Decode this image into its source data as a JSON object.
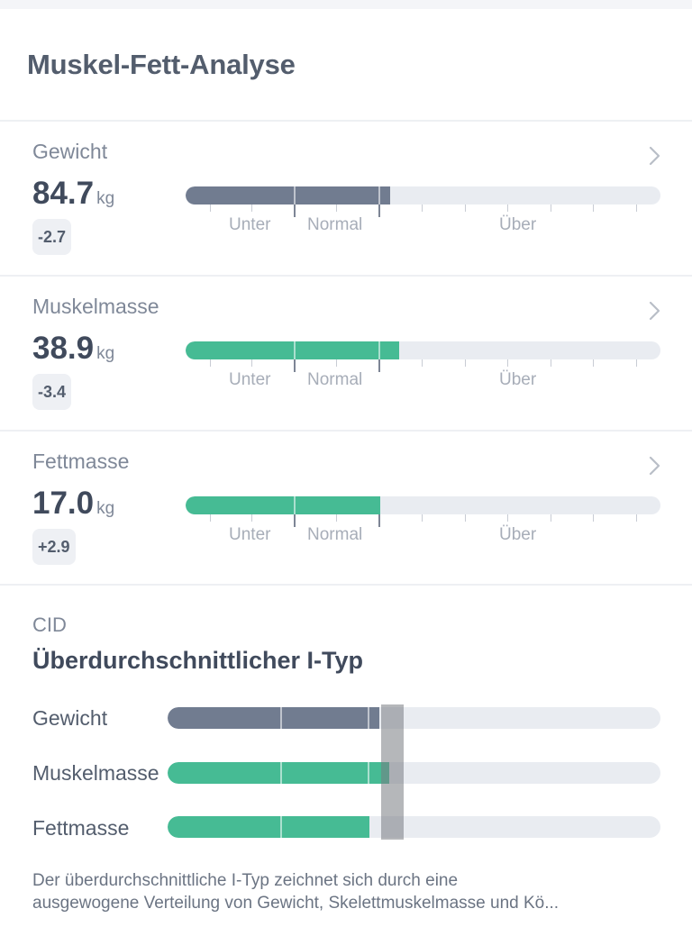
{
  "header": {
    "title": "Muskel-Fett-Analyse"
  },
  "scale_labels": {
    "under": "Unter",
    "normal": "Normal",
    "over": "Über"
  },
  "colors": {
    "weight": "#717c90",
    "muscle": "#46bb94",
    "fat": "#46bb94",
    "track": "#e9ecf1"
  },
  "metrics": [
    {
      "label": "Gewicht",
      "value": "84.7",
      "unit": "kg",
      "delta": "-2.7",
      "icon": "chevron-right-icon",
      "fill_percent": 43
    },
    {
      "label": "Muskelmasse",
      "value": "38.9",
      "unit": "kg",
      "delta": "-3.4",
      "icon": "chevron-right-icon",
      "fill_percent": 45
    },
    {
      "label": "Fettmasse",
      "value": "17.0",
      "unit": "kg",
      "delta": "+2.9",
      "icon": "chevron-right-icon",
      "fill_percent": 41
    }
  ],
  "cid": {
    "label": "CID",
    "type": "Überdurchschnittlicher I-Typ",
    "rows": [
      {
        "label": "Gewicht",
        "fill_percent": 43
      },
      {
        "label": "Muskelmasse",
        "fill_percent": 45
      },
      {
        "label": "Fettmasse",
        "fill_percent": 41
      }
    ],
    "description_line1": "Der überdurchschnittliche I-Typ zeichnet sich durch eine",
    "description_line2": "ausgewogene Verteilung von Gewicht, Skelettmuskelmasse und Kö..."
  }
}
